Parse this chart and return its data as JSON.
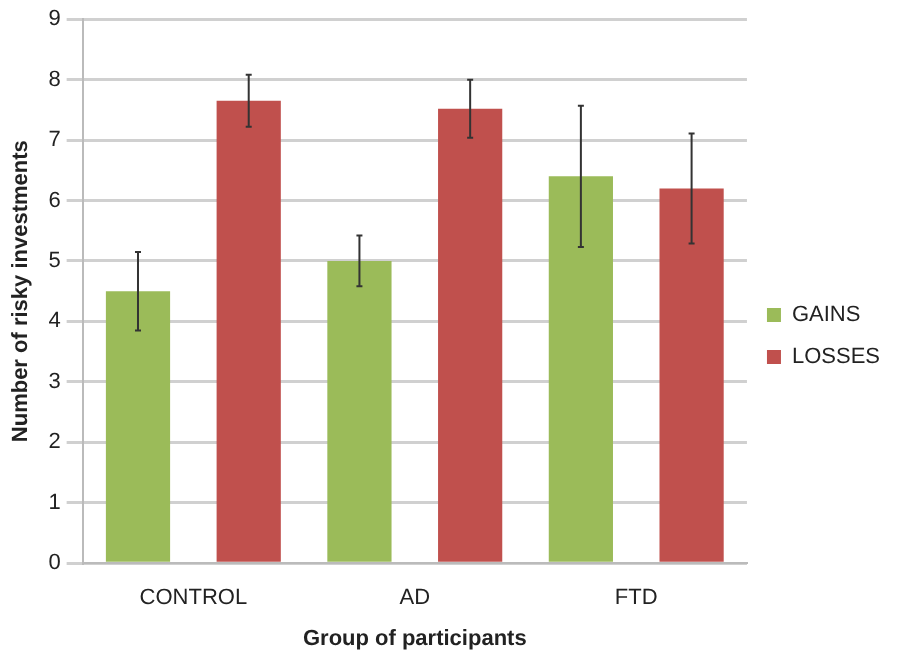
{
  "chart_data": {
    "type": "bar",
    "xlabel": "Group of participants",
    "ylabel": "Number of risky investments",
    "categories": [
      "CONTROL",
      "AD",
      "FTD"
    ],
    "series": [
      {
        "name": "GAINS",
        "color": "#9bbb59",
        "values": [
          4.5,
          5.0,
          6.4
        ],
        "errors": [
          0.65,
          0.42,
          1.17
        ]
      },
      {
        "name": "LOSSES",
        "color": "#c0504d",
        "values": [
          7.65,
          7.52,
          6.2
        ],
        "errors": [
          0.43,
          0.48,
          0.91
        ]
      }
    ],
    "ylim": [
      0,
      9
    ],
    "yticks": [
      0,
      1,
      2,
      3,
      4,
      5,
      6,
      7,
      8,
      9
    ],
    "grid": "y",
    "legend": "right"
  }
}
